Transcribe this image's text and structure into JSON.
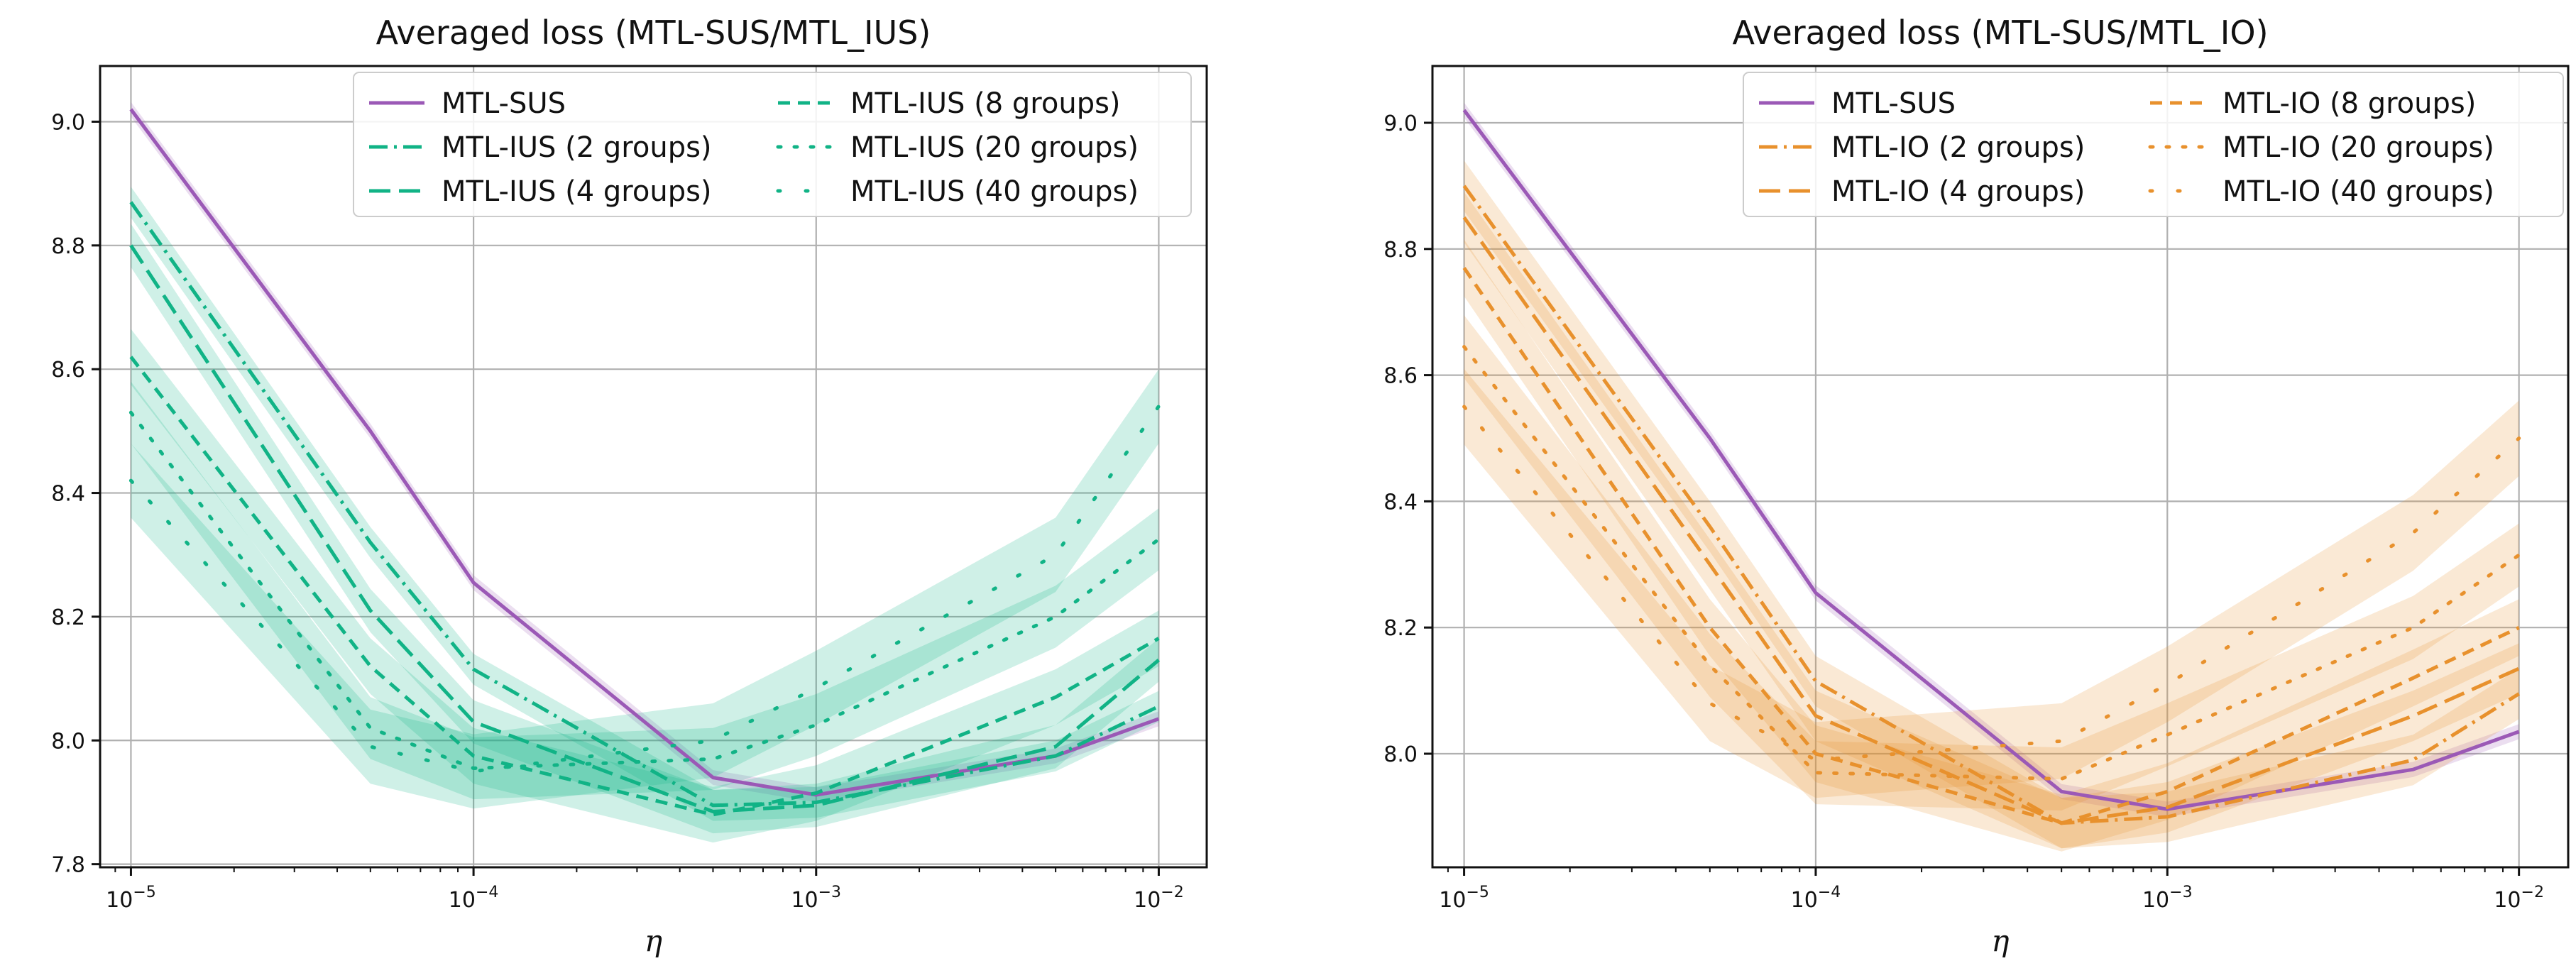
{
  "colors": {
    "sus": "#9b59b6",
    "ius": "#11b386",
    "io": "#e8912d"
  },
  "chart_data": [
    {
      "type": "line",
      "title": "Averaged loss (MTL-SUS/MTL_IUS)",
      "xlabel": "η",
      "ylabel": "",
      "xscale": "log",
      "x": [
        1e-05,
        5e-05,
        0.0001,
        0.0005,
        0.001,
        0.005,
        0.01
      ],
      "xticks": [
        1e-05,
        0.0001,
        0.001,
        0.01
      ],
      "xtick_exponents": [
        "−5",
        "−4",
        "−3",
        "−2"
      ],
      "yticks": [
        7.8,
        8.0,
        8.2,
        8.4,
        8.6,
        8.8,
        9.0
      ],
      "ytick_labels": [
        "7.8",
        "8.0",
        "8.2",
        "8.4",
        "8.6",
        "8.8",
        "9.0"
      ],
      "ylim": [
        7.795,
        9.09
      ],
      "legend_position": "top-right",
      "series": [
        {
          "name": "MTL-SUS",
          "style": "solid",
          "color": "#9b59b6",
          "values": [
            9.02,
            8.5,
            8.255,
            7.94,
            7.912,
            7.975,
            8.035
          ],
          "band": 0.012
        },
        {
          "name": "MTL-IUS (2 groups)",
          "style": "dashdot",
          "color": "#11b386",
          "values": [
            8.87,
            8.32,
            8.115,
            7.895,
            7.9,
            7.975,
            8.055
          ],
          "band": 0.025
        },
        {
          "name": "MTL-IUS (4 groups)",
          "style": "longdash",
          "color": "#11b386",
          "values": [
            8.8,
            8.21,
            8.03,
            7.885,
            7.895,
            7.99,
            8.13
          ],
          "band": 0.035
        },
        {
          "name": "MTL-IUS (8 groups)",
          "style": "dash",
          "color": "#11b386",
          "values": [
            8.62,
            8.12,
            7.975,
            7.88,
            7.915,
            8.07,
            8.165
          ],
          "band": 0.045
        },
        {
          "name": "MTL-IUS (20 groups)",
          "style": "dot",
          "color": "#11b386",
          "values": [
            8.53,
            8.02,
            7.955,
            7.97,
            8.025,
            8.2,
            8.325
          ],
          "band": 0.05
        },
        {
          "name": "MTL-IUS (40 groups)",
          "style": "sparse-dot",
          "color": "#11b386",
          "values": [
            8.42,
            7.99,
            7.95,
            8.0,
            8.085,
            8.3,
            8.54
          ],
          "band": 0.06
        }
      ]
    },
    {
      "type": "line",
      "title": "Averaged loss (MTL-SUS/MTL_IO)",
      "xlabel": "η",
      "ylabel": "",
      "xscale": "log",
      "x": [
        1e-05,
        5e-05,
        0.0001,
        0.0005,
        0.001,
        0.005,
        0.01
      ],
      "xticks": [
        1e-05,
        0.0001,
        0.001,
        0.01
      ],
      "xtick_exponents": [
        "−5",
        "−4",
        "−3",
        "−2"
      ],
      "yticks": [
        8.0,
        8.2,
        8.4,
        8.6,
        8.8,
        9.0
      ],
      "ytick_labels": [
        "8.0",
        "8.2",
        "8.4",
        "8.6",
        "8.8",
        "9.0"
      ],
      "ylim": [
        7.82,
        9.09
      ],
      "legend_position": "top-right",
      "series": [
        {
          "name": "MTL-SUS",
          "style": "solid",
          "color": "#9b59b6",
          "values": [
            9.02,
            8.5,
            8.255,
            7.94,
            7.912,
            7.975,
            8.035
          ],
          "band": 0.012
        },
        {
          "name": "MTL-IO (2 groups)",
          "style": "dashdot",
          "color": "#e8912d",
          "values": [
            8.9,
            8.36,
            8.115,
            7.89,
            7.9,
            7.99,
            8.095
          ],
          "band": 0.04
        },
        {
          "name": "MTL-IO (4 groups)",
          "style": "longdash",
          "color": "#e8912d",
          "values": [
            8.85,
            8.3,
            8.06,
            7.89,
            7.915,
            8.06,
            8.135
          ],
          "band": 0.04
        },
        {
          "name": "MTL-IO (8 groups)",
          "style": "dash",
          "color": "#e8912d",
          "values": [
            8.77,
            8.2,
            8.0,
            7.89,
            7.94,
            8.12,
            8.2
          ],
          "band": 0.045
        },
        {
          "name": "MTL-IO (20 groups)",
          "style": "dot",
          "color": "#e8912d",
          "values": [
            8.645,
            8.14,
            7.97,
            7.96,
            8.03,
            8.2,
            8.315
          ],
          "band": 0.05
        },
        {
          "name": "MTL-IO (40 groups)",
          "style": "sparse-dot",
          "color": "#e8912d",
          "values": [
            8.55,
            8.08,
            7.99,
            8.02,
            8.11,
            8.35,
            8.5
          ],
          "band": 0.06
        }
      ]
    }
  ]
}
